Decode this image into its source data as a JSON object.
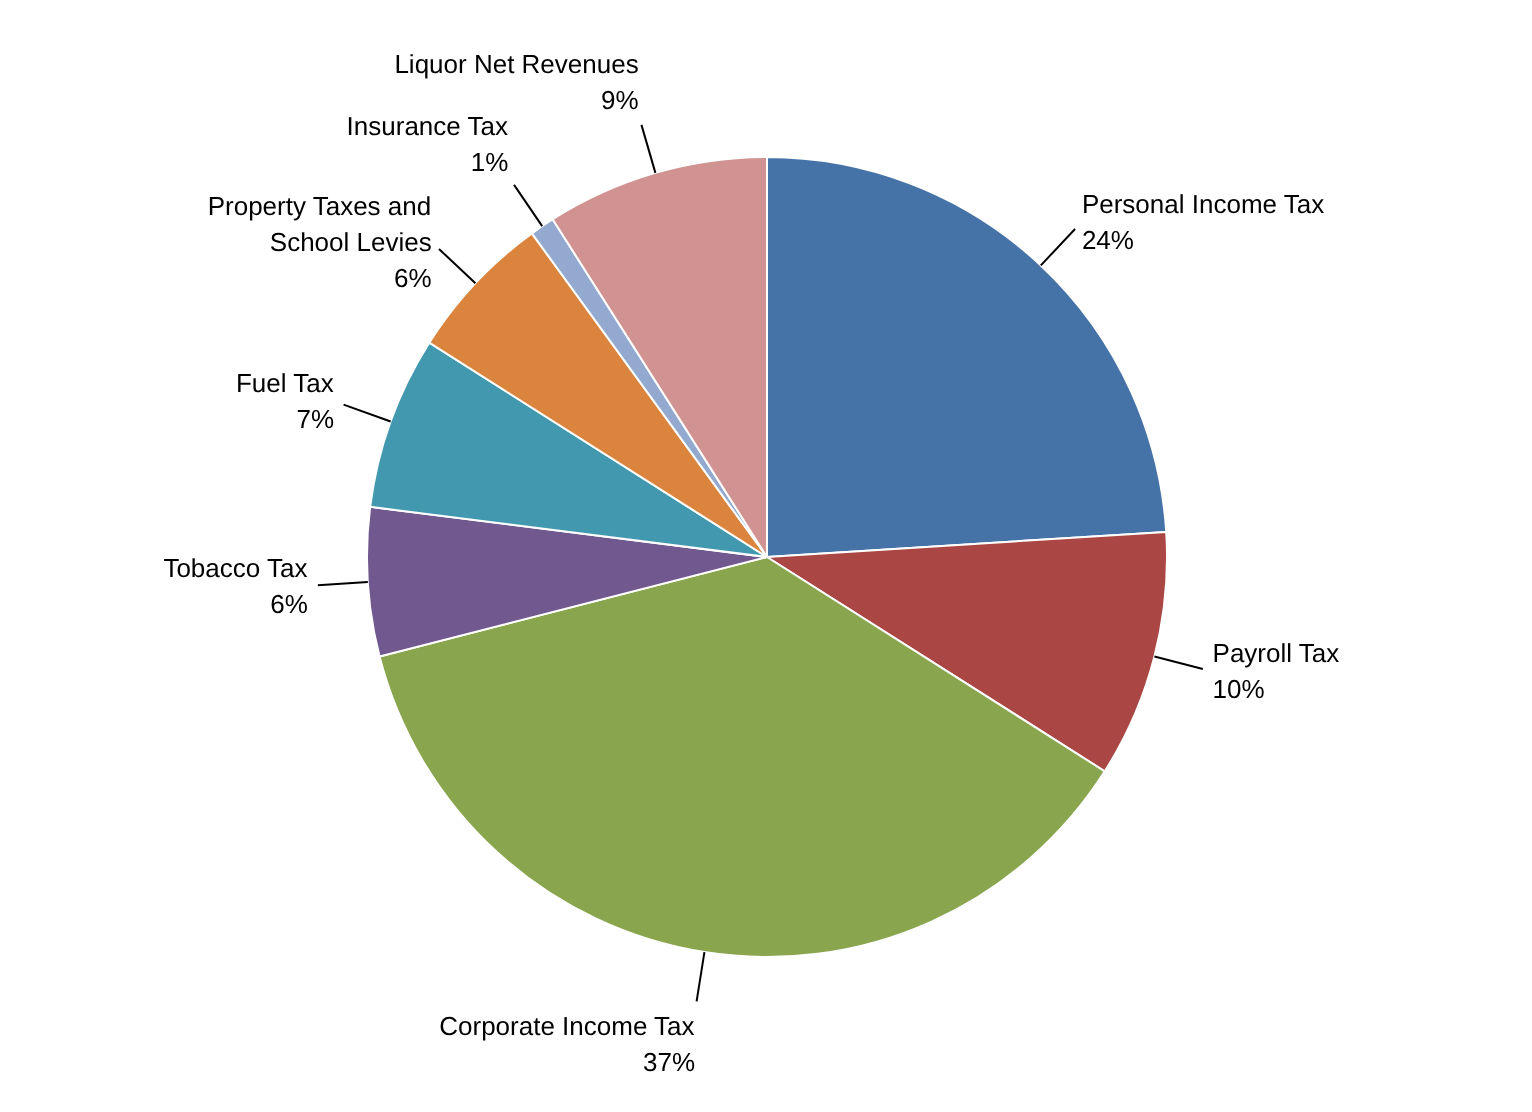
{
  "chart_data": {
    "type": "pie",
    "categories": [
      "Personal Income Tax",
      "Payroll Tax",
      "Corporate Income Tax",
      "Tobacco Tax",
      "Fuel Tax",
      "Property Taxes and School Levies",
      "Insurance Tax",
      "Liquor Net Revenues"
    ],
    "values": [
      24,
      10,
      37,
      6,
      7,
      6,
      1,
      9
    ],
    "colors": [
      "#4572a7",
      "#aa4643",
      "#89a54e",
      "#71588f",
      "#4198af",
      "#db843d",
      "#93a9cf",
      "#d19392"
    ],
    "value_labels": [
      "24%",
      "10%",
      "37%",
      "6%",
      "7%",
      "6%",
      "1%",
      "9%"
    ]
  }
}
